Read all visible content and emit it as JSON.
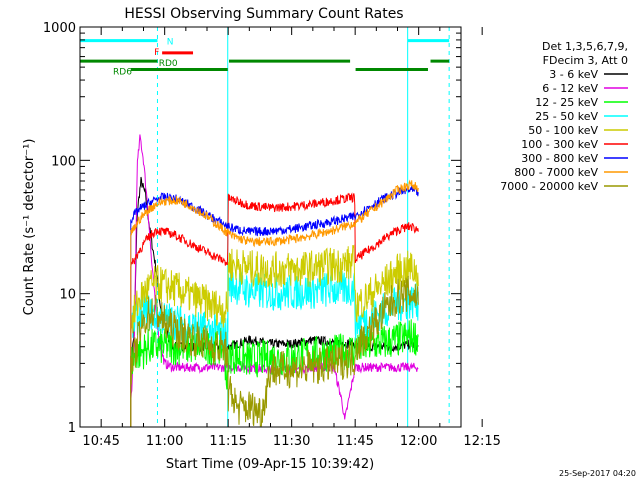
{
  "chart_data": {
    "type": "line",
    "title": "HESSI Observing Summary Count Rates",
    "xlabel": "Start Time (09-Apr-15 10:39:42)",
    "ylabel": "Count Rate (s⁻¹ detector⁻¹)",
    "y_scale": "log",
    "ylim": [
      1,
      1000
    ],
    "xlim_minutes": [
      10.0,
      100.0
    ],
    "x_ticks": [
      {
        "label": "10:45",
        "min": 15
      },
      {
        "label": "11:00",
        "min": 30
      },
      {
        "label": "11:15",
        "min": 45
      },
      {
        "label": "11:30",
        "min": 60
      },
      {
        "label": "11:45",
        "min": 75
      },
      {
        "label": "12:00",
        "min": 90
      },
      {
        "label": "12:15",
        "min": 105
      }
    ],
    "y_ticks": [
      {
        "label": "1",
        "value": 1
      },
      {
        "label": "10",
        "value": 10
      },
      {
        "label": "100",
        "value": 100
      },
      {
        "label": "1000",
        "value": 1000
      }
    ],
    "legend": {
      "header": [
        "Det 1,3,5,6,7,9,",
        "FDecim 3, Att 0"
      ],
      "placement": "right"
    },
    "series": [
      {
        "name": "3 - 6 keV",
        "color": "#000000",
        "points": [
          [
            22,
            3
          ],
          [
            22.8,
            5
          ],
          [
            23.5,
            40
          ],
          [
            24.4,
            70
          ],
          [
            25.5,
            55
          ],
          [
            26.5,
            30
          ],
          [
            28,
            15
          ],
          [
            29,
            8
          ],
          [
            30,
            6
          ],
          [
            31,
            4.5
          ],
          [
            32,
            4
          ],
          [
            45,
            4
          ],
          [
            45.1,
            4
          ],
          [
            50,
            4.5
          ],
          [
            55,
            4.2
          ],
          [
            60,
            4.2
          ],
          [
            65,
            4.5
          ],
          [
            70,
            4.3
          ],
          [
            74.9,
            4.2
          ],
          [
            75,
            4
          ],
          [
            80,
            4
          ],
          [
            85,
            4
          ],
          [
            88,
            4.2
          ],
          [
            90,
            4
          ]
        ]
      },
      {
        "name": "6 - 12 keV",
        "color": "#e000e0",
        "points": [
          [
            22,
            1.5
          ],
          [
            22.8,
            4
          ],
          [
            23.5,
            90
          ],
          [
            24.2,
            150
          ],
          [
            25,
            100
          ],
          [
            26,
            45
          ],
          [
            27,
            16
          ],
          [
            28,
            7
          ],
          [
            29,
            4
          ],
          [
            30,
            3
          ],
          [
            32,
            2.8
          ],
          [
            45,
            2.8
          ],
          [
            50,
            2.8
          ],
          [
            55,
            2.7
          ],
          [
            60,
            2.7
          ],
          [
            65,
            2.8
          ],
          [
            70,
            2.8
          ],
          [
            72,
            1.5
          ],
          [
            72.5,
            1.1
          ],
          [
            75,
            2.8
          ],
          [
            80,
            2.8
          ],
          [
            85,
            2.8
          ],
          [
            90,
            2.8
          ]
        ]
      },
      {
        "name": "12 - 25 keV",
        "color": "#00ff00",
        "points": [
          [
            22,
            3
          ],
          [
            23,
            3.5
          ],
          [
            24.5,
            3.6
          ],
          [
            26,
            4
          ],
          [
            30,
            4
          ],
          [
            35,
            4
          ],
          [
            40,
            4
          ],
          [
            44,
            4
          ],
          [
            45,
            1.7
          ],
          [
            45.1,
            3.5
          ],
          [
            50,
            3.2
          ],
          [
            55,
            3.3
          ],
          [
            60,
            3.3
          ],
          [
            65,
            3.5
          ],
          [
            70,
            3.6
          ],
          [
            74.9,
            3.8
          ],
          [
            75,
            3.9
          ],
          [
            80,
            4.2
          ],
          [
            85,
            4.5
          ],
          [
            88,
            4.8
          ],
          [
            90,
            4.7
          ]
        ]
      },
      {
        "name": "25 - 50 keV",
        "color": "#00ffff",
        "points": [
          [
            22,
            5.5
          ],
          [
            24,
            7
          ],
          [
            25.5,
            7.5
          ],
          [
            27,
            7
          ],
          [
            30,
            6.5
          ],
          [
            34,
            6
          ],
          [
            38,
            5.5
          ],
          [
            42,
            5.2
          ],
          [
            44.9,
            5
          ],
          [
            45,
            12
          ],
          [
            50,
            10.5
          ],
          [
            55,
            10.2
          ],
          [
            60,
            10.3
          ],
          [
            65,
            10.5
          ],
          [
            70,
            10.8
          ],
          [
            74.9,
            11
          ],
          [
            75,
            6
          ],
          [
            78,
            6.5
          ],
          [
            82,
            7.5
          ],
          [
            85,
            8.3
          ],
          [
            88,
            8.8
          ],
          [
            90,
            8.6
          ]
        ]
      },
      {
        "name": "50 - 100 keV",
        "color": "#cccc00",
        "points": [
          [
            22,
            6
          ],
          [
            24,
            9
          ],
          [
            26,
            11
          ],
          [
            28,
            12
          ],
          [
            32,
            11
          ],
          [
            38,
            9
          ],
          [
            42,
            8
          ],
          [
            44.9,
            7.5
          ],
          [
            45,
            17
          ],
          [
            50,
            15.5
          ],
          [
            55,
            15
          ],
          [
            60,
            15.2
          ],
          [
            65,
            15.5
          ],
          [
            70,
            16.3
          ],
          [
            74.9,
            17
          ],
          [
            75,
            8
          ],
          [
            78,
            9.5
          ],
          [
            82,
            12
          ],
          [
            85,
            14.5
          ],
          [
            88,
            15.5
          ],
          [
            90,
            14.5
          ]
        ]
      },
      {
        "name": "100 - 300 keV",
        "color": "#ff0000",
        "points": [
          [
            22,
            16
          ],
          [
            24,
            21
          ],
          [
            26,
            26
          ],
          [
            28,
            30
          ],
          [
            32,
            28
          ],
          [
            38,
            22
          ],
          [
            42,
            19
          ],
          [
            44.9,
            17
          ],
          [
            45,
            52
          ],
          [
            50,
            46
          ],
          [
            55,
            44
          ],
          [
            60,
            45
          ],
          [
            65,
            47
          ],
          [
            70,
            50
          ],
          [
            74.9,
            53
          ],
          [
            75,
            18
          ],
          [
            78,
            21
          ],
          [
            82,
            26
          ],
          [
            85,
            30
          ],
          [
            88,
            32
          ],
          [
            90,
            30
          ]
        ]
      },
      {
        "name": "300 - 800 keV",
        "color": "#0000ff",
        "points": [
          [
            22,
            36
          ],
          [
            24,
            43
          ],
          [
            26,
            47
          ],
          [
            28,
            51
          ],
          [
            30,
            53
          ],
          [
            33,
            51
          ],
          [
            36,
            46
          ],
          [
            40,
            39
          ],
          [
            44,
            33
          ],
          [
            46,
            31
          ],
          [
            50,
            29
          ],
          [
            55,
            29.5
          ],
          [
            60,
            30.5
          ],
          [
            65,
            32.5
          ],
          [
            70,
            35
          ],
          [
            75,
            38
          ],
          [
            78,
            44
          ],
          [
            82,
            52
          ],
          [
            85,
            57
          ],
          [
            88,
            60
          ],
          [
            90,
            57
          ]
        ]
      },
      {
        "name": "800 - 7000 keV",
        "color": "#ff9900",
        "points": [
          [
            22,
            28
          ],
          [
            24,
            36
          ],
          [
            26,
            42
          ],
          [
            28,
            47
          ],
          [
            30,
            49.5
          ],
          [
            33,
            50
          ],
          [
            36,
            46
          ],
          [
            40,
            38
          ],
          [
            44,
            30
          ],
          [
            46,
            27
          ],
          [
            50,
            24.5
          ],
          [
            55,
            24.5
          ],
          [
            60,
            25.5
          ],
          [
            65,
            27.5
          ],
          [
            70,
            30
          ],
          [
            75,
            34
          ],
          [
            78,
            40
          ],
          [
            82,
            50
          ],
          [
            85,
            60
          ],
          [
            88,
            66
          ],
          [
            90,
            63
          ]
        ]
      },
      {
        "name": "7000 - 20000 keV",
        "color": "#999900",
        "points": [
          [
            22,
            2.5
          ],
          [
            24,
            5
          ],
          [
            26,
            7
          ],
          [
            28,
            7.5
          ],
          [
            30,
            6
          ],
          [
            34,
            5
          ],
          [
            38,
            4.5
          ],
          [
            42,
            4
          ],
          [
            44.9,
            3.8
          ],
          [
            45,
            1.2
          ],
          [
            45.5,
            2
          ],
          [
            47,
            1.4
          ],
          [
            50,
            1.4
          ],
          [
            53,
            1.3
          ],
          [
            55,
            2.7
          ],
          [
            60,
            2.7
          ],
          [
            65,
            2.8
          ],
          [
            70,
            3
          ],
          [
            74.9,
            3.3
          ],
          [
            75,
            4
          ],
          [
            78,
            5
          ],
          [
            82,
            7.5
          ],
          [
            85,
            9.5
          ],
          [
            88,
            10
          ],
          [
            90,
            9.5
          ]
        ]
      }
    ],
    "status_bars": [
      {
        "name": "N",
        "color": "#00ffff",
        "y_value": 790,
        "segments": [
          [
            10,
            28.3
          ],
          [
            87.4,
            97.2
          ]
        ],
        "label_at": [
          30.5,
          790
        ]
      },
      {
        "name": "F",
        "color": "#ff0000",
        "y_value": 640,
        "segments": [
          [
            29.4,
            36.7
          ]
        ],
        "label_at": [
          27.5,
          660
        ]
      },
      {
        "name": "RD0",
        "color": "#008800",
        "y_value": 555,
        "segments": [
          [
            10,
            28.3
          ],
          [
            45.2,
            73.8
          ],
          [
            92.8,
            97.2
          ]
        ],
        "label_at": [
          28.6,
          545
        ]
      },
      {
        "name": "RD6",
        "color": "#008800",
        "y_value": 480,
        "segments": [
          [
            22,
            44.9
          ],
          [
            75.1,
            92.2
          ]
        ],
        "label_at": [
          17.8,
          470
        ]
      }
    ],
    "vlines": [
      {
        "min": 10.0,
        "color": "#00ffff",
        "style": "solid"
      },
      {
        "min": 28.3,
        "color": "#00ffff",
        "style": "dashed"
      },
      {
        "min": 44.9,
        "color": "#00ffff",
        "style": "solid"
      },
      {
        "min": 87.4,
        "color": "#00ffff",
        "style": "solid"
      },
      {
        "min": 97.2,
        "color": "#00ffff",
        "style": "dashed"
      }
    ],
    "footer_date": "25-Sep-2017 04:20"
  }
}
